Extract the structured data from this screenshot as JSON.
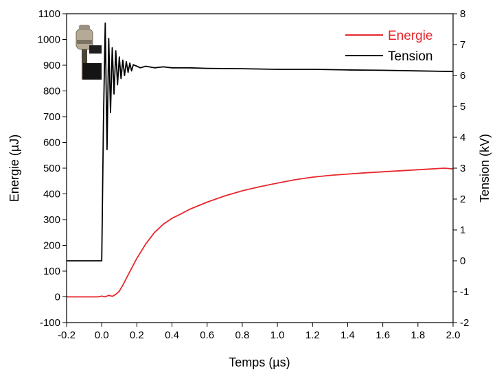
{
  "chart_data": {
    "type": "line",
    "xlabel": "Temps (µs)",
    "ylabel_left": "Energie (µJ)",
    "ylabel_right": "Tension (kV)",
    "xlim": [
      -0.2,
      2.0
    ],
    "ylim_left": [
      -100,
      1100
    ],
    "ylim_right": [
      -2,
      8
    ],
    "x_ticks": [
      "-0.2",
      "0.0",
      "0.2",
      "0.4",
      "0.6",
      "0.8",
      "1.0",
      "1.2",
      "1.4",
      "1.6",
      "1.8",
      "2.0"
    ],
    "y_left_ticks": [
      "-100",
      "0",
      "100",
      "200",
      "300",
      "400",
      "500",
      "600",
      "700",
      "800",
      "900",
      "1000",
      "1100"
    ],
    "y_right_ticks": [
      "-2",
      "-1",
      "0",
      "1",
      "2",
      "3",
      "4",
      "5",
      "6",
      "7",
      "8"
    ],
    "grid": false,
    "legend_position": "top-right",
    "series": [
      {
        "name": "Energie",
        "axis": "left",
        "color": "#e8262c",
        "x": [
          -0.2,
          -0.02,
          0.0,
          0.02,
          0.04,
          0.06,
          0.08,
          0.1,
          0.12,
          0.15,
          0.2,
          0.25,
          0.3,
          0.35,
          0.4,
          0.45,
          0.5,
          0.6,
          0.7,
          0.8,
          0.9,
          1.0,
          1.1,
          1.2,
          1.3,
          1.4,
          1.5,
          1.6,
          1.7,
          1.8,
          1.9,
          1.95,
          2.0
        ],
        "y": [
          0,
          0,
          3,
          0,
          6,
          2,
          10,
          22,
          45,
          85,
          150,
          205,
          250,
          282,
          305,
          322,
          340,
          368,
          392,
          412,
          428,
          442,
          455,
          465,
          472,
          477,
          482,
          486,
          490,
          494,
          498,
          500,
          497
        ]
      },
      {
        "name": "Tension",
        "axis": "right",
        "color": "#000000",
        "x": [
          -0.2,
          -0.1,
          -0.02,
          0.0,
          0.01,
          0.02,
          0.03,
          0.04,
          0.05,
          0.06,
          0.07,
          0.08,
          0.09,
          0.1,
          0.11,
          0.12,
          0.13,
          0.14,
          0.15,
          0.16,
          0.17,
          0.18,
          0.2,
          0.22,
          0.25,
          0.3,
          0.35,
          0.4,
          0.5,
          0.6,
          0.8,
          1.0,
          1.2,
          1.4,
          1.6,
          1.8,
          2.0
        ],
        "y": [
          0.0,
          0.0,
          0.0,
          0.0,
          4.5,
          7.7,
          3.6,
          7.2,
          4.8,
          6.9,
          5.4,
          6.8,
          5.7,
          6.6,
          5.9,
          6.5,
          6.0,
          6.45,
          6.1,
          6.4,
          6.15,
          6.35,
          6.3,
          6.25,
          6.3,
          6.25,
          6.28,
          6.25,
          6.25,
          6.23,
          6.22,
          6.2,
          6.2,
          6.18,
          6.17,
          6.15,
          6.13
        ]
      }
    ]
  }
}
